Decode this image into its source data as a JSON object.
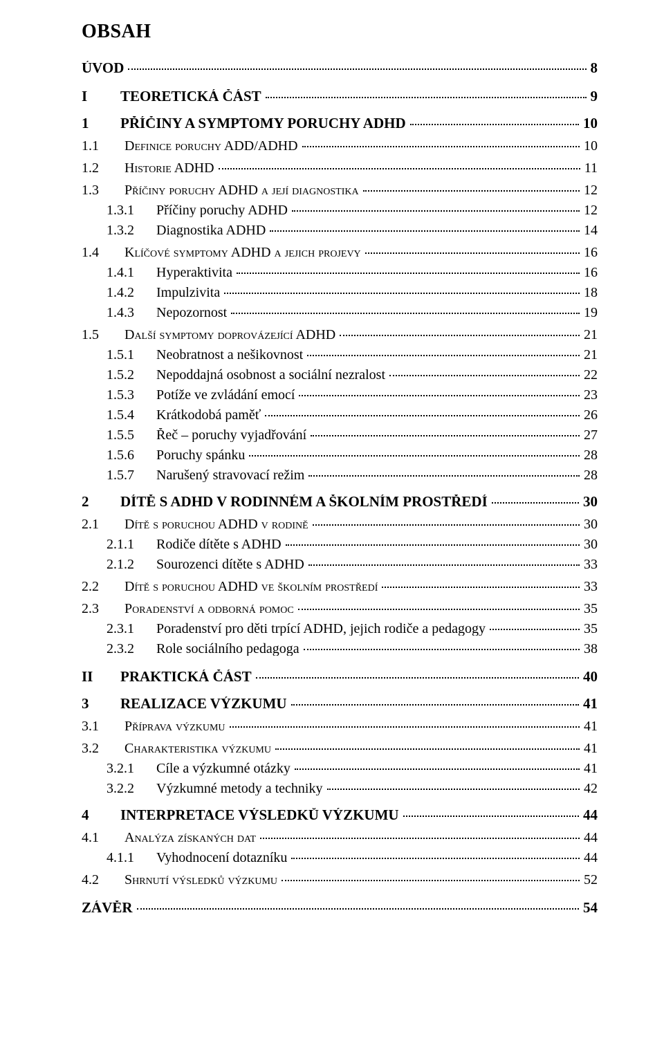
{
  "title": "OBSAH",
  "entries": [
    {
      "level": "top",
      "num": "",
      "label": "ÚVOD",
      "page": "8"
    },
    {
      "level": "top",
      "num": "I",
      "label": "TEORETICKÁ ČÁST",
      "page": "9",
      "numMinWidth": 40
    },
    {
      "level": "sect",
      "num": "1",
      "label": "PŘÍČINY A SYMPTOMY  PORUCHY ADHD",
      "page": "10"
    },
    {
      "level": "sub",
      "num": "1.1",
      "label": "Definice poruchy ADD/ADHD",
      "page": "10",
      "smallcaps": true
    },
    {
      "level": "sub",
      "num": "1.2",
      "label": "Historie ADHD",
      "page": "11",
      "smallcaps": true
    },
    {
      "level": "sub",
      "num": "1.3",
      "label": "Příčiny poruchy ADHD a její diagnostika",
      "page": "12",
      "smallcaps": true
    },
    {
      "level": "subsub",
      "num": "1.3.1",
      "label": "Příčiny poruchy ADHD",
      "page": "12"
    },
    {
      "level": "subsub",
      "num": "1.3.2",
      "label": "Diagnostika ADHD",
      "page": "14"
    },
    {
      "level": "sub",
      "num": "1.4",
      "label": "Klíčové symptomy ADHD a jejich projevy",
      "page": "16",
      "smallcaps": true
    },
    {
      "level": "subsub",
      "num": "1.4.1",
      "label": "Hyperaktivita",
      "page": "16"
    },
    {
      "level": "subsub",
      "num": "1.4.2",
      "label": "Impulzivita",
      "page": "18"
    },
    {
      "level": "subsub",
      "num": "1.4.3",
      "label": "Nepozornost",
      "page": "19"
    },
    {
      "level": "sub",
      "num": "1.5",
      "label": "Další symptomy doprovázející ADHD",
      "page": "21",
      "smallcaps": true
    },
    {
      "level": "subsub",
      "num": "1.5.1",
      "label": "Neobratnost a nešikovnost",
      "page": "21"
    },
    {
      "level": "subsub",
      "num": "1.5.2",
      "label": "Nepoddajná osobnost a sociální nezralost",
      "page": "22"
    },
    {
      "level": "subsub",
      "num": "1.5.3",
      "label": "Potíže ve zvládání emocí",
      "page": "23"
    },
    {
      "level": "subsub",
      "num": "1.5.4",
      "label": "Krátkodobá paměť",
      "page": "26"
    },
    {
      "level": "subsub",
      "num": "1.5.5",
      "label": "Řeč – poruchy vyjadřování",
      "page": "27"
    },
    {
      "level": "subsub",
      "num": "1.5.6",
      "label": "Poruchy spánku",
      "page": "28"
    },
    {
      "level": "subsub",
      "num": "1.5.7",
      "label": "Narušený stravovací režim",
      "page": "28"
    },
    {
      "level": "sect",
      "num": "2",
      "label": "DÍTĚ S ADHD V RODINNÉM A ŠKOLNÍM PROSTŘEDÍ",
      "page": "30"
    },
    {
      "level": "sub",
      "num": "2.1",
      "label": "Dítě s poruchou ADHD v rodině",
      "page": "30",
      "smallcaps": true
    },
    {
      "level": "subsub",
      "num": "2.1.1",
      "label": "Rodiče dítěte s ADHD",
      "page": "30"
    },
    {
      "level": "subsub",
      "num": "2.1.2",
      "label": "Sourozenci dítěte s ADHD",
      "page": "33"
    },
    {
      "level": "sub",
      "num": "2.2",
      "label": "Dítě s poruchou ADHD ve školním prostředí",
      "page": "33",
      "smallcaps": true
    },
    {
      "level": "sub",
      "num": "2.3",
      "label": "Poradenství a odborná pomoc",
      "page": "35",
      "smallcaps": true
    },
    {
      "level": "subsub",
      "num": "2.3.1",
      "label": "Poradenství pro děti trpící ADHD, jejich rodiče a pedagogy",
      "page": "35"
    },
    {
      "level": "subsub",
      "num": "2.3.2",
      "label": "Role sociálního pedagoga",
      "page": "38"
    },
    {
      "level": "top",
      "num": "II",
      "label": "PRAKTICKÁ ČÁST",
      "page": "40",
      "numMinWidth": 40
    },
    {
      "level": "sect",
      "num": "3",
      "label": "REALIZACE VÝZKUMU",
      "page": "41"
    },
    {
      "level": "sub",
      "num": "3.1",
      "label": "Příprava výzkumu",
      "page": "41",
      "smallcaps": true
    },
    {
      "level": "sub",
      "num": "3.2",
      "label": "Charakteristika výzkumu",
      "page": "41",
      "smallcaps": true
    },
    {
      "level": "subsub",
      "num": "3.2.1",
      "label": "Cíle a výzkumné otázky",
      "page": "41"
    },
    {
      "level": "subsub",
      "num": "3.2.2",
      "label": "Výzkumné metody a techniky",
      "page": "42"
    },
    {
      "level": "sect",
      "num": "4",
      "label": "INTERPRETACE VÝSLEDKŮ VÝZKUMU",
      "page": "44"
    },
    {
      "level": "sub",
      "num": "4.1",
      "label": "Analýza získaných dat",
      "page": "44",
      "smallcaps": true
    },
    {
      "level": "subsub",
      "num": "4.1.1",
      "label": "Vyhodnocení dotazníku",
      "page": "44"
    },
    {
      "level": "sub",
      "num": "4.2",
      "label": "Shrnutí výsledků výzkumu",
      "page": "52",
      "smallcaps": true
    },
    {
      "level": "top",
      "num": "",
      "label": "ZÁVĚR",
      "page": "54"
    }
  ]
}
